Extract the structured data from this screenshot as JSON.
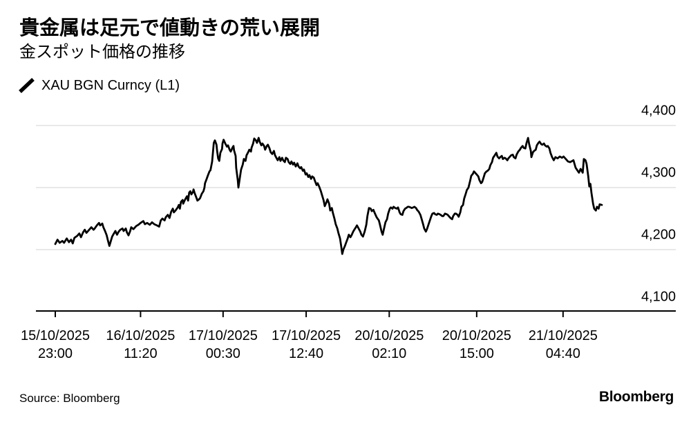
{
  "header": {
    "title": "貴金属は足元で値動きの荒い展開",
    "subtitle": "金スポット価格の推移"
  },
  "legend": {
    "label": "XAU BGN Curncy (L1)"
  },
  "footer": {
    "source": "Source: Bloomberg",
    "logo": "Bloomberg"
  },
  "colors": {
    "line": "#000000",
    "grid": "#d9d9d9",
    "axis": "#000000",
    "text": "#000000",
    "background": "#ffffff"
  },
  "chart_data": {
    "type": "line",
    "title": "貴金属は足元で値動きの荒い展開",
    "subtitle": "金スポット価格の推移",
    "series_name": "XAU BGN Curncy (L1)",
    "xlabel": "",
    "ylabel": "",
    "ylim": [
      4100,
      4400
    ],
    "grid": "horizontal-light",
    "legend_position": "top-left",
    "y_axis_side": "right",
    "y_ticks": [
      {
        "value": 4400,
        "label": "4,400"
      },
      {
        "value": 4300,
        "label": "4,300"
      },
      {
        "value": 4200,
        "label": "4,200"
      },
      {
        "value": 4100,
        "label": "4,100"
      }
    ],
    "x_ticks": [
      {
        "date": "15/10/2025",
        "time": "23:00",
        "frac": 0.0
      },
      {
        "date": "16/10/2025",
        "time": "11:20",
        "frac": 0.156
      },
      {
        "date": "17/10/2025",
        "time": "00:30",
        "frac": 0.307
      },
      {
        "date": "17/10/2025",
        "time": "12:40",
        "frac": 0.459
      },
      {
        "date": "20/10/2025",
        "time": "02:10",
        "frac": 0.611
      },
      {
        "date": "20/10/2025",
        "time": "15:00",
        "frac": 0.771
      },
      {
        "date": "21/10/2025",
        "time": "04:40",
        "frac": 0.929
      }
    ],
    "points": [
      [
        0.0,
        4209
      ],
      [
        0.004,
        4216
      ],
      [
        0.008,
        4211
      ],
      [
        0.013,
        4214
      ],
      [
        0.016,
        4211
      ],
      [
        0.021,
        4218
      ],
      [
        0.025,
        4212
      ],
      [
        0.029,
        4216
      ],
      [
        0.032,
        4210
      ],
      [
        0.035,
        4219
      ],
      [
        0.04,
        4222
      ],
      [
        0.044,
        4226
      ],
      [
        0.047,
        4220
      ],
      [
        0.051,
        4228
      ],
      [
        0.054,
        4232
      ],
      [
        0.057,
        4227
      ],
      [
        0.061,
        4231
      ],
      [
        0.066,
        4236
      ],
      [
        0.07,
        4232
      ],
      [
        0.072,
        4234
      ],
      [
        0.076,
        4239
      ],
      [
        0.08,
        4243
      ],
      [
        0.082,
        4239
      ],
      [
        0.086,
        4242
      ],
      [
        0.088,
        4236
      ],
      [
        0.091,
        4230
      ],
      [
        0.094,
        4223
      ],
      [
        0.096,
        4216
      ],
      [
        0.099,
        4206
      ],
      [
        0.101,
        4212
      ],
      [
        0.104,
        4221
      ],
      [
        0.106,
        4224
      ],
      [
        0.11,
        4230
      ],
      [
        0.113,
        4224
      ],
      [
        0.116,
        4229
      ],
      [
        0.119,
        4232
      ],
      [
        0.123,
        4234
      ],
      [
        0.125,
        4230
      ],
      [
        0.129,
        4234
      ],
      [
        0.131,
        4228
      ],
      [
        0.134,
        4223
      ],
      [
        0.137,
        4230
      ],
      [
        0.139,
        4236
      ],
      [
        0.143,
        4233
      ],
      [
        0.148,
        4238
      ],
      [
        0.152,
        4240
      ],
      [
        0.156,
        4243
      ],
      [
        0.161,
        4246
      ],
      [
        0.164,
        4241
      ],
      [
        0.168,
        4243
      ],
      [
        0.173,
        4240
      ],
      [
        0.177,
        4244
      ],
      [
        0.181,
        4241
      ],
      [
        0.186,
        4239
      ],
      [
        0.19,
        4237
      ],
      [
        0.193,
        4247
      ],
      [
        0.196,
        4250
      ],
      [
        0.2,
        4247
      ],
      [
        0.202,
        4252
      ],
      [
        0.206,
        4256
      ],
      [
        0.209,
        4251
      ],
      [
        0.212,
        4261
      ],
      [
        0.215,
        4266
      ],
      [
        0.217,
        4260
      ],
      [
        0.22,
        4263
      ],
      [
        0.224,
        4268
      ],
      [
        0.226,
        4272
      ],
      [
        0.228,
        4266
      ],
      [
        0.23,
        4277
      ],
      [
        0.233,
        4280
      ],
      [
        0.234,
        4274
      ],
      [
        0.236,
        4278
      ],
      [
        0.239,
        4283
      ],
      [
        0.241,
        4286
      ],
      [
        0.243,
        4279
      ],
      [
        0.245,
        4292
      ],
      [
        0.247,
        4294
      ],
      [
        0.249,
        4289
      ],
      [
        0.252,
        4293
      ],
      [
        0.253,
        4297
      ],
      [
        0.255,
        4291
      ],
      [
        0.258,
        4284
      ],
      [
        0.26,
        4279
      ],
      [
        0.263,
        4281
      ],
      [
        0.265,
        4283
      ],
      [
        0.268,
        4290
      ],
      [
        0.271,
        4294
      ],
      [
        0.273,
        4300
      ],
      [
        0.274,
        4307
      ],
      [
        0.277,
        4314
      ],
      [
        0.279,
        4319
      ],
      [
        0.282,
        4326
      ],
      [
        0.284,
        4328
      ],
      [
        0.287,
        4342
      ],
      [
        0.29,
        4372
      ],
      [
        0.292,
        4376
      ],
      [
        0.295,
        4369
      ],
      [
        0.296,
        4360
      ],
      [
        0.298,
        4347
      ],
      [
        0.3,
        4343
      ],
      [
        0.302,
        4356
      ],
      [
        0.305,
        4362
      ],
      [
        0.306,
        4371
      ],
      [
        0.308,
        4377
      ],
      [
        0.311,
        4371
      ],
      [
        0.314,
        4366
      ],
      [
        0.316,
        4368
      ],
      [
        0.319,
        4361
      ],
      [
        0.321,
        4358
      ],
      [
        0.324,
        4364
      ],
      [
        0.326,
        4367
      ],
      [
        0.327,
        4360
      ],
      [
        0.33,
        4351
      ],
      [
        0.331,
        4332
      ],
      [
        0.334,
        4311
      ],
      [
        0.335,
        4300
      ],
      [
        0.338,
        4318
      ],
      [
        0.34,
        4329
      ],
      [
        0.343,
        4337
      ],
      [
        0.345,
        4346
      ],
      [
        0.348,
        4343
      ],
      [
        0.35,
        4352
      ],
      [
        0.353,
        4357
      ],
      [
        0.355,
        4361
      ],
      [
        0.358,
        4358
      ],
      [
        0.359,
        4364
      ],
      [
        0.362,
        4371
      ],
      [
        0.364,
        4379
      ],
      [
        0.367,
        4376
      ],
      [
        0.369,
        4372
      ],
      [
        0.372,
        4380
      ],
      [
        0.374,
        4374
      ],
      [
        0.377,
        4368
      ],
      [
        0.379,
        4371
      ],
      [
        0.382,
        4367
      ],
      [
        0.384,
        4361
      ],
      [
        0.387,
        4367
      ],
      [
        0.389,
        4369
      ],
      [
        0.392,
        4363
      ],
      [
        0.394,
        4357
      ],
      [
        0.397,
        4354
      ],
      [
        0.4,
        4359
      ],
      [
        0.402,
        4352
      ],
      [
        0.405,
        4347
      ],
      [
        0.407,
        4344
      ],
      [
        0.41,
        4349
      ],
      [
        0.412,
        4343
      ],
      [
        0.415,
        4348
      ],
      [
        0.417,
        4344
      ],
      [
        0.42,
        4341
      ],
      [
        0.422,
        4348
      ],
      [
        0.425,
        4346
      ],
      [
        0.427,
        4341
      ],
      [
        0.43,
        4338
      ],
      [
        0.432,
        4342
      ],
      [
        0.435,
        4337
      ],
      [
        0.437,
        4340
      ],
      [
        0.44,
        4334
      ],
      [
        0.443,
        4339
      ],
      [
        0.445,
        4334
      ],
      [
        0.448,
        4331
      ],
      [
        0.45,
        4333
      ],
      [
        0.453,
        4327
      ],
      [
        0.455,
        4329
      ],
      [
        0.458,
        4321
      ],
      [
        0.46,
        4323
      ],
      [
        0.463,
        4317
      ],
      [
        0.465,
        4320
      ],
      [
        0.468,
        4314
      ],
      [
        0.47,
        4318
      ],
      [
        0.473,
        4316
      ],
      [
        0.475,
        4311
      ],
      [
        0.478,
        4304
      ],
      [
        0.48,
        4307
      ],
      [
        0.483,
        4301
      ],
      [
        0.486,
        4294
      ],
      [
        0.488,
        4288
      ],
      [
        0.491,
        4279
      ],
      [
        0.493,
        4270
      ],
      [
        0.496,
        4276
      ],
      [
        0.498,
        4281
      ],
      [
        0.501,
        4274
      ],
      [
        0.503,
        4263
      ],
      [
        0.506,
        4267
      ],
      [
        0.508,
        4259
      ],
      [
        0.511,
        4249
      ],
      [
        0.513,
        4241
      ],
      [
        0.516,
        4234
      ],
      [
        0.518,
        4227
      ],
      [
        0.521,
        4218
      ],
      [
        0.523,
        4206
      ],
      [
        0.525,
        4193
      ],
      [
        0.527,
        4200
      ],
      [
        0.53,
        4206
      ],
      [
        0.532,
        4211
      ],
      [
        0.535,
        4218
      ],
      [
        0.537,
        4224
      ],
      [
        0.54,
        4220
      ],
      [
        0.542,
        4223
      ],
      [
        0.545,
        4229
      ],
      [
        0.547,
        4232
      ],
      [
        0.55,
        4236
      ],
      [
        0.552,
        4239
      ],
      [
        0.555,
        4234
      ],
      [
        0.558,
        4229
      ],
      [
        0.56,
        4224
      ],
      [
        0.563,
        4221
      ],
      [
        0.566,
        4229
      ],
      [
        0.569,
        4240
      ],
      [
        0.571,
        4254
      ],
      [
        0.574,
        4267
      ],
      [
        0.577,
        4266
      ],
      [
        0.579,
        4262
      ],
      [
        0.582,
        4264
      ],
      [
        0.584,
        4260
      ],
      [
        0.588,
        4252
      ],
      [
        0.592,
        4247
      ],
      [
        0.594,
        4240
      ],
      [
        0.597,
        4229
      ],
      [
        0.599,
        4224
      ],
      [
        0.602,
        4236
      ],
      [
        0.604,
        4244
      ],
      [
        0.607,
        4249
      ],
      [
        0.609,
        4258
      ],
      [
        0.612,
        4266
      ],
      [
        0.614,
        4268
      ],
      [
        0.617,
        4266
      ],
      [
        0.619,
        4269
      ],
      [
        0.622,
        4267
      ],
      [
        0.625,
        4266
      ],
      [
        0.627,
        4268
      ],
      [
        0.63,
        4260
      ],
      [
        0.632,
        4257
      ],
      [
        0.635,
        4256
      ],
      [
        0.637,
        4262
      ],
      [
        0.64,
        4266
      ],
      [
        0.642,
        4267
      ],
      [
        0.645,
        4269
      ],
      [
        0.647,
        4269
      ],
      [
        0.65,
        4268
      ],
      [
        0.652,
        4267
      ],
      [
        0.655,
        4268
      ],
      [
        0.657,
        4269
      ],
      [
        0.66,
        4267
      ],
      [
        0.662,
        4264
      ],
      [
        0.665,
        4261
      ],
      [
        0.668,
        4256
      ],
      [
        0.67,
        4250
      ],
      [
        0.673,
        4241
      ],
      [
        0.675,
        4234
      ],
      [
        0.678,
        4229
      ],
      [
        0.68,
        4233
      ],
      [
        0.683,
        4241
      ],
      [
        0.685,
        4246
      ],
      [
        0.688,
        4254
      ],
      [
        0.69,
        4258
      ],
      [
        0.693,
        4259
      ],
      [
        0.695,
        4257
      ],
      [
        0.698,
        4256
      ],
      [
        0.7,
        4258
      ],
      [
        0.703,
        4257
      ],
      [
        0.705,
        4256
      ],
      [
        0.708,
        4254
      ],
      [
        0.71,
        4254
      ],
      [
        0.713,
        4258
      ],
      [
        0.716,
        4257
      ],
      [
        0.718,
        4256
      ],
      [
        0.721,
        4253
      ],
      [
        0.723,
        4251
      ],
      [
        0.726,
        4249
      ],
      [
        0.728,
        4254
      ],
      [
        0.731,
        4258
      ],
      [
        0.733,
        4258
      ],
      [
        0.736,
        4256
      ],
      [
        0.738,
        4253
      ],
      [
        0.741,
        4260
      ],
      [
        0.743,
        4269
      ],
      [
        0.746,
        4272
      ],
      [
        0.748,
        4282
      ],
      [
        0.751,
        4290
      ],
      [
        0.753,
        4296
      ],
      [
        0.756,
        4300
      ],
      [
        0.759,
        4311
      ],
      [
        0.761,
        4319
      ],
      [
        0.764,
        4322
      ],
      [
        0.766,
        4326
      ],
      [
        0.769,
        4323
      ],
      [
        0.771,
        4321
      ],
      [
        0.774,
        4318
      ],
      [
        0.776,
        4312
      ],
      [
        0.779,
        4307
      ],
      [
        0.781,
        4309
      ],
      [
        0.784,
        4317
      ],
      [
        0.786,
        4323
      ],
      [
        0.789,
        4326
      ],
      [
        0.791,
        4327
      ],
      [
        0.794,
        4330
      ],
      [
        0.796,
        4336
      ],
      [
        0.799,
        4341
      ],
      [
        0.801,
        4348
      ],
      [
        0.804,
        4352
      ],
      [
        0.807,
        4356
      ],
      [
        0.809,
        4350
      ],
      [
        0.812,
        4347
      ],
      [
        0.814,
        4349
      ],
      [
        0.817,
        4351
      ],
      [
        0.819,
        4346
      ],
      [
        0.822,
        4348
      ],
      [
        0.824,
        4347
      ],
      [
        0.827,
        4344
      ],
      [
        0.829,
        4347
      ],
      [
        0.832,
        4350
      ],
      [
        0.834,
        4352
      ],
      [
        0.837,
        4353
      ],
      [
        0.839,
        4349
      ],
      [
        0.842,
        4347
      ],
      [
        0.844,
        4353
      ],
      [
        0.847,
        4358
      ],
      [
        0.85,
        4361
      ],
      [
        0.852,
        4364
      ],
      [
        0.855,
        4367
      ],
      [
        0.857,
        4364
      ],
      [
        0.86,
        4363
      ],
      [
        0.862,
        4371
      ],
      [
        0.865,
        4380
      ],
      [
        0.867,
        4370
      ],
      [
        0.87,
        4359
      ],
      [
        0.871,
        4349
      ],
      [
        0.874,
        4357
      ],
      [
        0.876,
        4359
      ],
      [
        0.879,
        4361
      ],
      [
        0.881,
        4368
      ],
      [
        0.884,
        4372
      ],
      [
        0.886,
        4374
      ],
      [
        0.889,
        4370
      ],
      [
        0.891,
        4369
      ],
      [
        0.894,
        4371
      ],
      [
        0.896,
        4368
      ],
      [
        0.899,
        4366
      ],
      [
        0.901,
        4367
      ],
      [
        0.904,
        4363
      ],
      [
        0.906,
        4356
      ],
      [
        0.909,
        4349
      ],
      [
        0.912,
        4344
      ],
      [
        0.915,
        4349
      ],
      [
        0.919,
        4347
      ],
      [
        0.923,
        4350
      ],
      [
        0.927,
        4348
      ],
      [
        0.93,
        4350
      ],
      [
        0.934,
        4346
      ],
      [
        0.938,
        4342
      ],
      [
        0.942,
        4341
      ],
      [
        0.946,
        4343
      ],
      [
        0.948,
        4344
      ],
      [
        0.952,
        4332
      ],
      [
        0.955,
        4328
      ],
      [
        0.958,
        4324
      ],
      [
        0.961,
        4330
      ],
      [
        0.965,
        4324
      ],
      [
        0.967,
        4346
      ],
      [
        0.97,
        4344
      ],
      [
        0.972,
        4338
      ],
      [
        0.975,
        4319
      ],
      [
        0.977,
        4302
      ],
      [
        0.979,
        4306
      ],
      [
        0.981,
        4291
      ],
      [
        0.984,
        4274
      ],
      [
        0.986,
        4266
      ],
      [
        0.989,
        4263
      ],
      [
        0.991,
        4269
      ],
      [
        0.994,
        4266
      ],
      [
        0.996,
        4273
      ],
      [
        1.0,
        4272
      ]
    ]
  }
}
